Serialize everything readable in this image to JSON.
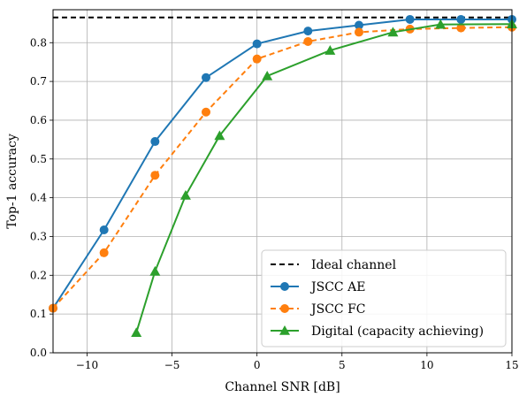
{
  "chart_data": {
    "type": "line",
    "xlabel": "Channel SNR [dB]",
    "ylabel": "Top-1 accuracy",
    "xlim": [
      -12,
      15
    ],
    "ylim": [
      0.0,
      0.885
    ],
    "xticks": [
      -10,
      -5,
      0,
      5,
      10,
      15
    ],
    "xtick_labels": [
      "−10",
      "−5",
      "0",
      "5",
      "10",
      "15"
    ],
    "yticks": [
      0.0,
      0.1,
      0.2,
      0.3,
      0.4,
      0.5,
      0.6,
      0.7,
      0.8
    ],
    "ytick_labels": [
      "0.0",
      "0.1",
      "0.2",
      "0.3",
      "0.4",
      "0.5",
      "0.6",
      "0.7",
      "0.8"
    ],
    "grid": true,
    "legend_position": "bottom-right",
    "reference_line": {
      "name": "Ideal channel",
      "y": 0.865,
      "color": "#000000",
      "style": "dashed"
    },
    "series": [
      {
        "name": "JSCC AE",
        "color": "#1f77b4",
        "style": "solid",
        "marker": "circle",
        "x": [
          -12,
          -9,
          -6,
          -3,
          0,
          3,
          6,
          9,
          12,
          15
        ],
        "y": [
          0.115,
          0.317,
          0.545,
          0.71,
          0.797,
          0.83,
          0.845,
          0.86,
          0.86,
          0.86
        ]
      },
      {
        "name": "JSCC FC",
        "color": "#ff7f0e",
        "style": "dashed",
        "marker": "circle",
        "x": [
          -12,
          -9,
          -6,
          -3,
          0,
          3,
          6,
          9,
          12,
          15
        ],
        "y": [
          0.115,
          0.258,
          0.458,
          0.621,
          0.758,
          0.803,
          0.827,
          0.835,
          0.838,
          0.84
        ]
      },
      {
        "name": "Digital (capacity achieving)",
        "color": "#2ca02c",
        "style": "solid",
        "marker": "triangle",
        "x": [
          -7.1,
          -6.0,
          -4.2,
          -2.2,
          0.6,
          4.3,
          8.0,
          10.8,
          15
        ],
        "y": [
          0.052,
          0.21,
          0.406,
          0.56,
          0.714,
          0.78,
          0.827,
          0.847,
          0.848
        ]
      }
    ]
  }
}
